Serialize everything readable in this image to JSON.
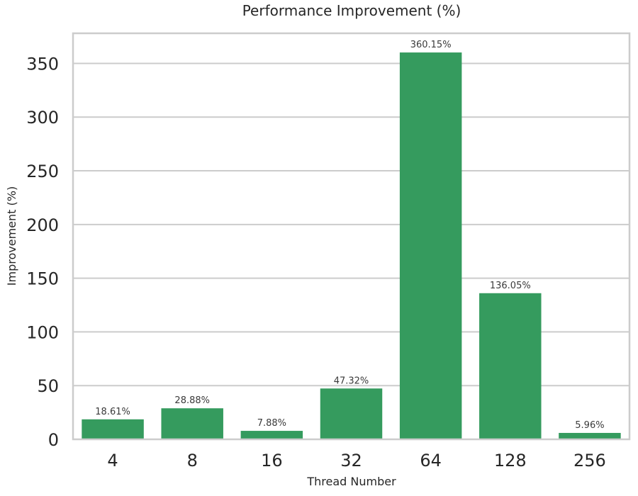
{
  "chart_data": {
    "type": "bar",
    "title": "Performance Improvement (%)",
    "xlabel": "Thread Number",
    "ylabel": "Improvement (%)",
    "categories": [
      "4",
      "8",
      "16",
      "32",
      "64",
      "128",
      "256"
    ],
    "values": [
      18.61,
      28.88,
      7.88,
      47.32,
      360.15,
      136.05,
      5.96
    ],
    "data_labels": [
      "18.61%",
      "28.88%",
      "7.88%",
      "47.32%",
      "360.15%",
      "136.05%",
      "5.96%"
    ],
    "ylim": [
      0,
      378
    ],
    "yticks": [
      0,
      50,
      100,
      150,
      200,
      250,
      300,
      350
    ],
    "grid": true,
    "bar_color": "#359b5e",
    "legend": "none"
  }
}
